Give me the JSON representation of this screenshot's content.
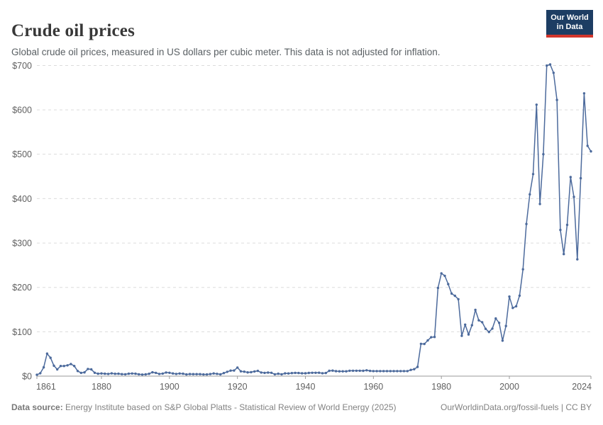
{
  "header": {
    "title": "Crude oil prices",
    "subtitle": "Global crude oil prices, measured in US dollars per cubic meter. This data is not adjusted for inflation.",
    "logo": {
      "line1": "Our World",
      "line2": "in Data",
      "bg_color": "#1d3d63",
      "accent_color": "#d2352b"
    }
  },
  "footer": {
    "source_label": "Data source:",
    "source_text": " Energy Institute based on S&P Global Platts - Statistical Review of World Energy (2025)",
    "link_text": "OurWorldinData.org/fossil-fuels | CC BY"
  },
  "chart_data": {
    "type": "line",
    "title": "Crude oil prices",
    "xlabel": "",
    "ylabel": "US dollars per cubic meter",
    "x_start": 1861,
    "x_end": 2024,
    "x_interval": "annual",
    "xticks": [
      1861,
      1880,
      1900,
      1920,
      1940,
      1960,
      1980,
      2000,
      2024
    ],
    "ylim": [
      0,
      700
    ],
    "yticks": [
      0,
      100,
      200,
      300,
      400,
      500,
      600,
      700
    ],
    "ytick_prefix": "$",
    "grid": "horizontal-dashed",
    "legend_position": "none",
    "line_color": "#4C6A9C",
    "marker": "circle",
    "series": [
      {
        "name": "Crude oil price (US$ per cubic meter)",
        "values": [
          3.1,
          6.6,
          19.8,
          50.7,
          41.4,
          23.5,
          15.2,
          22.8,
          22.9,
          24.3,
          27.3,
          22.9,
          11.5,
          7.4,
          8.5,
          16.1,
          15.2,
          7.5,
          5.4,
          6.0,
          5.4,
          4.9,
          6.3,
          5.3,
          5.5,
          4.5,
          4.2,
          5.5,
          5.9,
          5.5,
          4.2,
          3.5,
          4.0,
          5.3,
          8.6,
          7.4,
          5.0,
          5.7,
          8.1,
          7.5,
          6.0,
          5.0,
          5.9,
          5.4,
          3.9,
          4.6,
          4.5,
          4.5,
          4.4,
          3.8,
          3.8,
          4.7,
          6.0,
          5.1,
          4.0,
          6.9,
          9.8,
          12.5,
          12.6,
          19.3,
          10.9,
          10.1,
          8.4,
          9.0,
          10.6,
          11.8,
          8.2,
          7.4,
          8.0,
          7.5,
          4.1,
          5.5,
          4.2,
          6.3,
          6.1,
          6.9,
          7.4,
          7.1,
          6.4,
          6.4,
          7.2,
          7.5,
          7.5,
          7.6,
          6.6,
          7.0,
          12.0,
          12.5,
          11.2,
          10.8,
          10.8,
          10.8,
          12.1,
          12.1,
          12.1,
          12.1,
          12.0,
          13.1,
          11.8,
          11.3,
          11.3,
          11.3,
          11.3,
          11.3,
          11.3,
          11.3,
          11.3,
          11.3,
          11.3,
          11.3,
          14.1,
          15.6,
          20.7,
          72.8,
          72.5,
          80.5,
          87.6,
          88.2,
          198.8,
          231.7,
          226.0,
          207.4,
          185.9,
          181.0,
          173.4,
          90.8,
          116.0,
          93.8,
          114.7,
          149.3,
          125.8,
          121.5,
          106.7,
          99.5,
          107.1,
          130.0,
          120.1,
          80.0,
          113.0,
          179.3,
          153.7,
          157.4,
          181.3,
          240.7,
          342.9,
          409.7,
          455.3,
          611.7,
          387.9,
          500.1,
          699.8,
          702.4,
          683.5,
          622.4,
          329.5,
          275.1,
          340.9,
          448.5,
          403.9,
          263.2,
          446.0,
          637.3,
          518.9,
          506.5
        ]
      }
    ]
  }
}
